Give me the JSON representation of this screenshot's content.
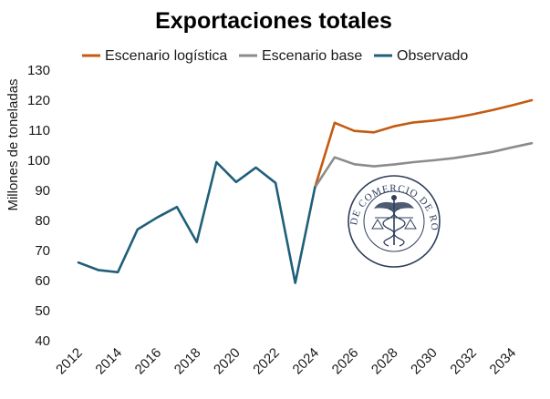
{
  "chart_data": {
    "type": "line",
    "title": "Exportaciones totales",
    "ylabel": "Millones de toneladas",
    "xlabel": "",
    "ylim": [
      40,
      130
    ],
    "yticks": [
      40,
      50,
      60,
      70,
      80,
      90,
      100,
      110,
      120,
      130
    ],
    "xlim": [
      2012,
      2035
    ],
    "xticks": [
      2012,
      2014,
      2016,
      2018,
      2020,
      2022,
      2024,
      2026,
      2028,
      2030,
      2032,
      2034
    ],
    "grid": false,
    "legend_position": "top",
    "series": [
      {
        "name": "Escenario logística",
        "color": "#c55a11",
        "x": [
          2024,
          2025,
          2026,
          2027,
          2028,
          2029,
          2030,
          2031,
          2032,
          2033,
          2034,
          2035
        ],
        "values": [
          91,
          112.5,
          109.8,
          109.3,
          111.3,
          112.6,
          113.2,
          114.1,
          115.3,
          116.7,
          118.3,
          120
        ]
      },
      {
        "name": "Escenario base",
        "color": "#8c8c8c",
        "x": [
          2024,
          2025,
          2026,
          2027,
          2028,
          2029,
          2030,
          2031,
          2032,
          2033,
          2034,
          2035
        ],
        "values": [
          91,
          101,
          98.7,
          98,
          98.6,
          99.4,
          100,
          100.7,
          101.7,
          102.8,
          104.3,
          105.7
        ]
      },
      {
        "name": "Observado",
        "color": "#1f5f7a",
        "x": [
          2012,
          2013,
          2014,
          2015,
          2016,
          2017,
          2018,
          2019,
          2020,
          2021,
          2022,
          2023,
          2024
        ],
        "values": [
          66,
          63.5,
          62.8,
          77,
          81,
          84.5,
          72.8,
          99.4,
          92.8,
          97.6,
          92.5,
          59.2,
          91
        ]
      }
    ]
  },
  "watermark": {
    "seal_text": "BOLSA DE COMERCIO DE ROSARIO",
    "icon": "caduceus-seal-icon",
    "color": "#2f3e5c"
  }
}
